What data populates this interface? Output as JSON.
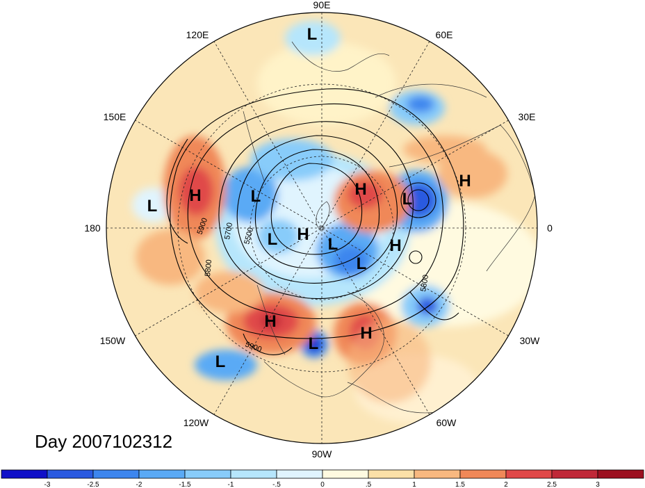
{
  "title": "Day 2007102312",
  "longitude_labels": [
    "90E",
    "60E",
    "30E",
    "0",
    "30W",
    "60W",
    "90W",
    "120W",
    "150W",
    "180",
    "150E",
    "120E"
  ],
  "contour_labels": [
    "5900",
    "5700",
    "5500",
    "5800",
    "5800",
    "5900"
  ],
  "pressure_centers": [
    {
      "type": "L"
    },
    {
      "type": "H"
    },
    {
      "type": "L"
    },
    {
      "type": "L"
    },
    {
      "type": "H"
    },
    {
      "type": "L"
    },
    {
      "type": "H"
    },
    {
      "type": "L"
    },
    {
      "type": "H"
    },
    {
      "type": "L"
    },
    {
      "type": "L"
    },
    {
      "type": "H"
    },
    {
      "type": "H"
    },
    {
      "type": "L"
    },
    {
      "type": "H"
    },
    {
      "type": "L"
    }
  ],
  "colorbar": {
    "ticks": [
      "-3",
      "-2.5",
      "-2",
      "-1.5",
      "-1",
      "-.5",
      "0",
      ".5",
      "1",
      "1.5",
      "2",
      "2.5",
      "3"
    ],
    "colors": [
      "#1010c8",
      "#2a5ae0",
      "#3d86ee",
      "#5aaaf5",
      "#88ccfa",
      "#b6e6fc",
      "#e0f4fe",
      "#fffae0",
      "#fbe0a8",
      "#f8b880",
      "#f08858",
      "#e04848",
      "#c02838",
      "#9c1020"
    ]
  }
}
